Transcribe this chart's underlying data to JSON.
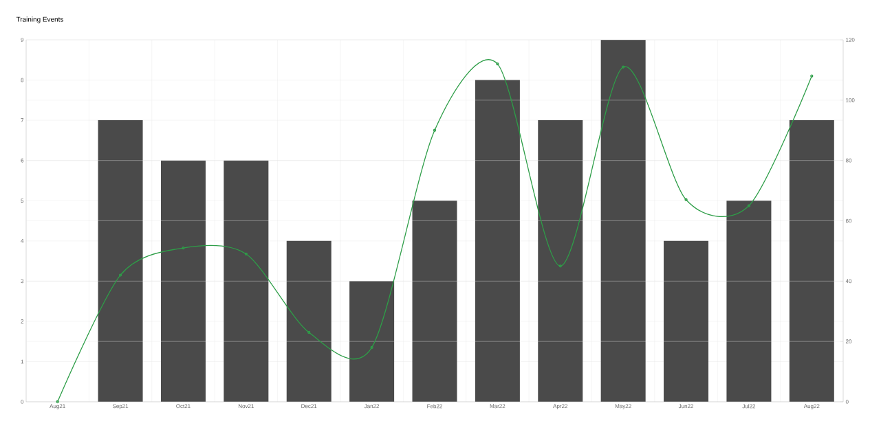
{
  "chart_data": {
    "type": "bar",
    "title": "Training Events",
    "categories": [
      "Aug21",
      "Sep21",
      "Oct21",
      "Nov21",
      "Dec21",
      "Jan22",
      "Feb22",
      "Mar22",
      "Apr22",
      "May22",
      "Jun22",
      "Jul22",
      "Aug22"
    ],
    "series": [
      {
        "color": "#4a4a4a",
        "values": [
          0,
          7,
          6,
          6,
          4,
          3,
          5,
          8,
          7,
          9,
          4,
          5,
          7
        ]
      },
      {
        "type": "line",
        "color": "#2e9e48",
        "axis": "y2",
        "values": [
          0,
          42,
          51,
          49,
          23,
          18,
          90,
          112,
          45,
          111,
          67,
          65,
          108
        ]
      }
    ],
    "ylim": [
      0,
      9
    ],
    "yticks": [
      0,
      1,
      2,
      3,
      4,
      5,
      6,
      7,
      8,
      9
    ],
    "y2lim": [
      0,
      120
    ],
    "y2ticks": [
      0,
      20,
      40,
      60,
      80,
      100,
      120
    ],
    "grid": true,
    "marker": "circle"
  }
}
